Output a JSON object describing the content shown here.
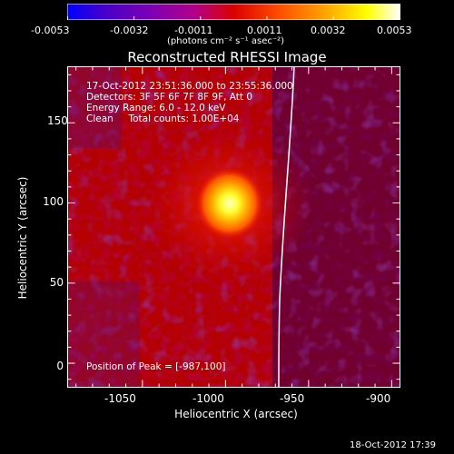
{
  "colorbar": {
    "ticks": [
      "-0.0053",
      "-0.0032",
      "-0.0011",
      "0.0011",
      "0.0032",
      "0.0053"
    ],
    "tick_values": [
      -0.0053,
      -0.0032,
      -0.0011,
      0.0011,
      0.0032,
      0.0053
    ],
    "units": "(photons cm⁻² s⁻¹ asec⁻²)",
    "colors": [
      "#0000ff",
      "#4a00c8",
      "#7d00b4",
      "#b0008a",
      "#dc0000",
      "#ff5000",
      "#ffa800",
      "#ffff00",
      "#ffffff"
    ]
  },
  "image": {
    "title": "Reconstructed RHESSI Image",
    "info_lines": [
      "17-Oct-2012 23:51:36.000 to 23:55:36.000",
      "Detectors: 3F 5F 6F 7F 8F 9F, Att 0",
      "Energy Range: 6.0 - 12.0 keV",
      "Clean     Total counts: 1.00E+04"
    ],
    "peak_text": "Position of Peak = [-987,100]",
    "peak_position": [
      -987,
      100
    ],
    "x_range": [
      -1095,
      -895
    ],
    "y_range": [
      -15,
      185
    ]
  },
  "axes": {
    "xlabel": "Heliocentric X (arcsec)",
    "ylabel": "Heliocentric Y (arcsec)",
    "x_ticks": [
      "-1050",
      "-1000",
      "-950",
      "-900"
    ],
    "x_tick_values": [
      -1050,
      -1000,
      -950,
      -900
    ],
    "y_ticks": [
      "0",
      "50",
      "100",
      "150"
    ],
    "y_tick_values": [
      0,
      50,
      100,
      150
    ]
  },
  "footer": {
    "timestamp": "18-Oct-2012 17:39"
  }
}
